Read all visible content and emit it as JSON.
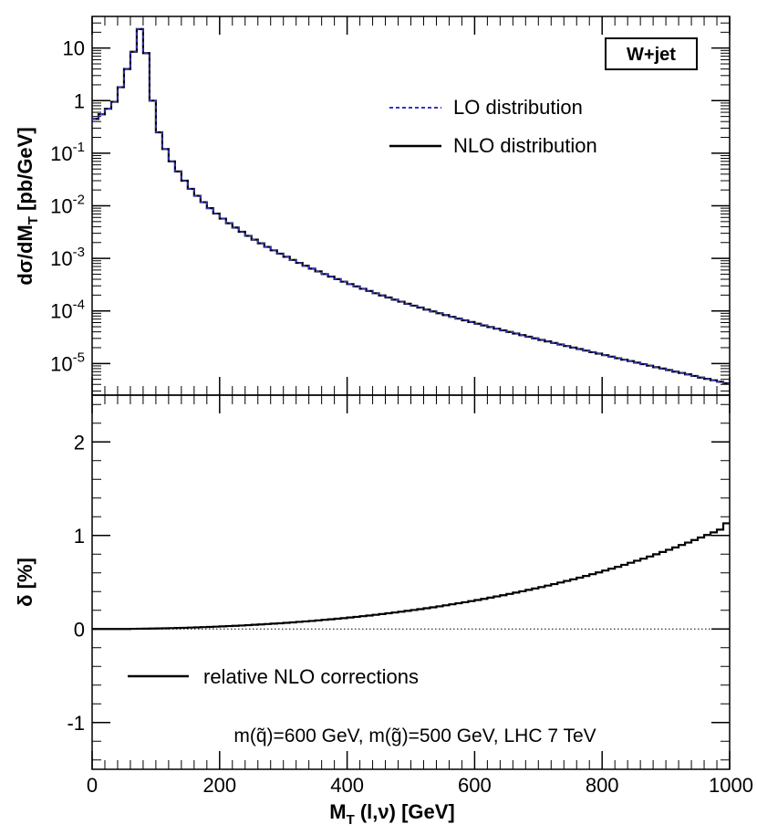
{
  "chart_data": [
    {
      "panel": "top",
      "type": "line",
      "drawstyle": "histogram-steps",
      "yscale": "log",
      "title": "",
      "xlabel": "",
      "ylabel": "dσ/dM_T [pb/GeV]",
      "ylabel_main": "dσ/dM",
      "ylabel_sub": "T",
      "ylabel_tail": " [pb/GeV]",
      "xlim": [
        0,
        1000
      ],
      "ylim": [
        2.5e-06,
        40
      ],
      "bin_width": 10,
      "x_ticks": [
        0,
        200,
        400,
        600,
        800,
        1000
      ],
      "y_ticks": [
        {
          "value": 10,
          "base": "10",
          "exp": ""
        },
        {
          "value": 1,
          "base": "1",
          "exp": ""
        },
        {
          "value": 0.1,
          "base": "10",
          "exp": "-1"
        },
        {
          "value": 0.01,
          "base": "10",
          "exp": "-2"
        },
        {
          "value": 0.001,
          "base": "10",
          "exp": "-3"
        },
        {
          "value": 0.0001,
          "base": "10",
          "exp": "-4"
        },
        {
          "value": 1e-05,
          "base": "10",
          "exp": "-5"
        }
      ],
      "badge": "W+jet",
      "legend": {
        "position": "top-right",
        "entries": [
          "LO distribution",
          "NLO distribution"
        ]
      },
      "series": [
        {
          "name": "LO distribution",
          "style": "dashed",
          "color": "#3333cc",
          "values": [
            0.45,
            0.55,
            0.7,
            0.95,
            1.8,
            4.0,
            8.5,
            23.0,
            8.0,
            1.0,
            0.25,
            0.12,
            0.07,
            0.045,
            0.03,
            0.021,
            0.0155,
            0.0117,
            0.009,
            0.0071,
            0.0057,
            0.00465,
            0.00385,
            0.0032,
            0.00268,
            0.00227,
            0.00193,
            0.00165,
            0.00142,
            0.00123,
            0.00107,
            0.000935,
            0.00082,
            0.000722,
            0.000638,
            0.000566,
            0.000503,
            0.000449,
            0.000402,
            0.00036,
            0.000324,
            0.000292,
            0.000264,
            0.000239,
            0.000217,
            0.000197,
            0.00018,
            0.000164,
            0.00015,
            0.000137,
            0.000126,
            0.000116,
            0.000106,
            9.79e-05,
            9.03e-05,
            8.34e-05,
            7.72e-05,
            7.14e-05,
            6.62e-05,
            6.14e-05,
            5.7e-05,
            5.3e-05,
            4.93e-05,
            4.59e-05,
            4.27e-05,
            3.98e-05,
            3.71e-05,
            3.46e-05,
            3.23e-05,
            3.01e-05,
            2.81e-05,
            2.63e-05,
            2.46e-05,
            2.3e-05,
            2.15e-05,
            2.01e-05,
            1.88e-05,
            1.76e-05,
            1.64e-05,
            1.54e-05,
            1.44e-05,
            1.35e-05,
            1.26e-05,
            1.18e-05,
            1.11e-05,
            1.04e-05,
            9.7e-06,
            9.1e-06,
            8.5e-06,
            8e-06,
            7.5e-06,
            7e-06,
            6.6e-06,
            6.2e-06,
            5.8e-06,
            5.4e-06,
            5.1e-06,
            4.8e-06,
            4.5e-06,
            4.2e-06
          ]
        },
        {
          "name": "NLO distribution",
          "style": "solid",
          "color": "#000000",
          "values": [
            0.45,
            0.55,
            0.7,
            0.95,
            1.8,
            4.0,
            8.5,
            23.0,
            8.0,
            1.0,
            0.25,
            0.12,
            0.07,
            0.045,
            0.03,
            0.021,
            0.0155,
            0.0117,
            0.009,
            0.0071,
            0.0057,
            0.00465,
            0.00385,
            0.0032,
            0.00268,
            0.00227,
            0.00193,
            0.00165,
            0.00142,
            0.00123,
            0.00107,
            0.000935,
            0.00082,
            0.000722,
            0.000638,
            0.000566,
            0.000503,
            0.000449,
            0.000402,
            0.00036,
            0.000324,
            0.000292,
            0.000264,
            0.000239,
            0.000217,
            0.000197,
            0.00018,
            0.000164,
            0.00015,
            0.000137,
            0.000126,
            0.000116,
            0.000106,
            9.79e-05,
            9.03e-05,
            8.34e-05,
            7.72e-05,
            7.14e-05,
            6.62e-05,
            6.14e-05,
            5.7e-05,
            5.3e-05,
            4.93e-05,
            4.59e-05,
            4.27e-05,
            3.98e-05,
            3.71e-05,
            3.46e-05,
            3.23e-05,
            3.01e-05,
            2.81e-05,
            2.63e-05,
            2.46e-05,
            2.3e-05,
            2.15e-05,
            2.01e-05,
            1.88e-05,
            1.76e-05,
            1.64e-05,
            1.54e-05,
            1.44e-05,
            1.35e-05,
            1.26e-05,
            1.18e-05,
            1.11e-05,
            1.04e-05,
            9.7e-06,
            9.1e-06,
            8.5e-06,
            8e-06,
            7.5e-06,
            7e-06,
            6.6e-06,
            6.2e-06,
            5.8e-06,
            5.4e-06,
            5.1e-06,
            4.8e-06,
            4.5e-06,
            4.2e-06
          ]
        }
      ]
    },
    {
      "panel": "bottom",
      "type": "line",
      "drawstyle": "histogram-steps",
      "yscale": "linear",
      "title": "",
      "xlabel": "M_T (l,ν) [GeV]",
      "xlabel_main": "M",
      "xlabel_sub": "T",
      "xlabel_tail": " (l,ν) [GeV]",
      "ylabel": "δ [%]",
      "xlim": [
        0,
        1000
      ],
      "ylim": [
        -1.5,
        2.5
      ],
      "bin_width": 10,
      "x_ticks": [
        0,
        200,
        400,
        600,
        800,
        1000
      ],
      "y_ticks": [
        -1,
        0,
        1,
        2
      ],
      "reference_line": {
        "y": 0,
        "style": "dotted"
      },
      "legend": {
        "position": "bottom-left",
        "entries": [
          "relative NLO corrections"
        ]
      },
      "annotation": "m(q̃)=600 GeV, m(g̃)=500 GeV, LHC 7 TeV",
      "series": [
        {
          "name": "relative NLO corrections",
          "style": "solid",
          "color": "#000000",
          "values": [
            0.0,
            0.0,
            0.0,
            0.0,
            0.0,
            0.0,
            0.002,
            0.003,
            0.004,
            0.005,
            0.006,
            0.007,
            0.009,
            0.011,
            0.013,
            0.015,
            0.017,
            0.02,
            0.022,
            0.025,
            0.028,
            0.031,
            0.034,
            0.037,
            0.041,
            0.045,
            0.049,
            0.053,
            0.057,
            0.061,
            0.066,
            0.071,
            0.076,
            0.081,
            0.086,
            0.092,
            0.098,
            0.104,
            0.11,
            0.116,
            0.123,
            0.13,
            0.137,
            0.144,
            0.152,
            0.16,
            0.168,
            0.176,
            0.185,
            0.194,
            0.203,
            0.212,
            0.222,
            0.232,
            0.242,
            0.253,
            0.264,
            0.275,
            0.286,
            0.298,
            0.31,
            0.322,
            0.335,
            0.348,
            0.361,
            0.375,
            0.389,
            0.403,
            0.418,
            0.433,
            0.448,
            0.464,
            0.48,
            0.497,
            0.514,
            0.531,
            0.549,
            0.567,
            0.586,
            0.605,
            0.625,
            0.645,
            0.665,
            0.686,
            0.708,
            0.73,
            0.752,
            0.775,
            0.799,
            0.823,
            0.847,
            0.872,
            0.898,
            0.924,
            0.951,
            0.978,
            1.005,
            1.033,
            1.062,
            1.13
          ]
        }
      ]
    }
  ]
}
